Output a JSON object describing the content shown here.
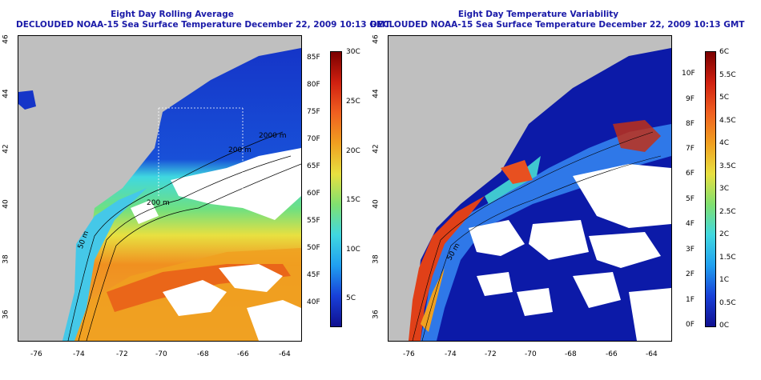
{
  "left_map": {
    "title_line1": "Eight Day Rolling Average",
    "title_line2": "DECLOUDED NOAA-15 Sea Surface Temperature December 22, 2009 10:13 GMT",
    "x_ticks": [
      "-76",
      "-74",
      "-72",
      "-70",
      "-68",
      "-66",
      "-64"
    ],
    "y_ticks": [
      "36",
      "38",
      "40",
      "42",
      "44",
      "46"
    ],
    "contour_labels": [
      "50 m",
      "200 m",
      "200 m",
      "2000 m"
    ],
    "colorbar_f": [
      "85F",
      "80F",
      "75F",
      "70F",
      "65F",
      "60F",
      "55F",
      "50F",
      "45F",
      "40F"
    ],
    "colorbar_c": [
      "30C",
      "25C",
      "20C",
      "15C",
      "10C",
      "5C"
    ]
  },
  "right_map": {
    "title_line1": "Eight Day Temperature Variability",
    "title_line2": "DECLOUDED NOAA-15 Sea Surface Temperature December 22, 2009 10:13 GMT",
    "x_ticks": [
      "-76",
      "-74",
      "-72",
      "-70",
      "-68",
      "-66",
      "-64"
    ],
    "y_ticks": [
      "36",
      "38",
      "40",
      "42",
      "44",
      "46"
    ],
    "contour_labels": [
      "50 m"
    ],
    "colorbar_f": [
      "10F",
      "9F",
      "8F",
      "7F",
      "6F",
      "5F",
      "4F",
      "3F",
      "2F",
      "1F",
      "0F"
    ],
    "colorbar_c": [
      "6C",
      "5.5C",
      "5C",
      "4.5C",
      "4C",
      "3.5C",
      "3C",
      "2.5C",
      "2C",
      "1.5C",
      "1C",
      "0.5C",
      "0C"
    ]
  },
  "colors": {
    "land": "#bfbfbf",
    "title": "#1a1aa8",
    "cold": "#0a1aa0",
    "hot": "#c01010"
  }
}
